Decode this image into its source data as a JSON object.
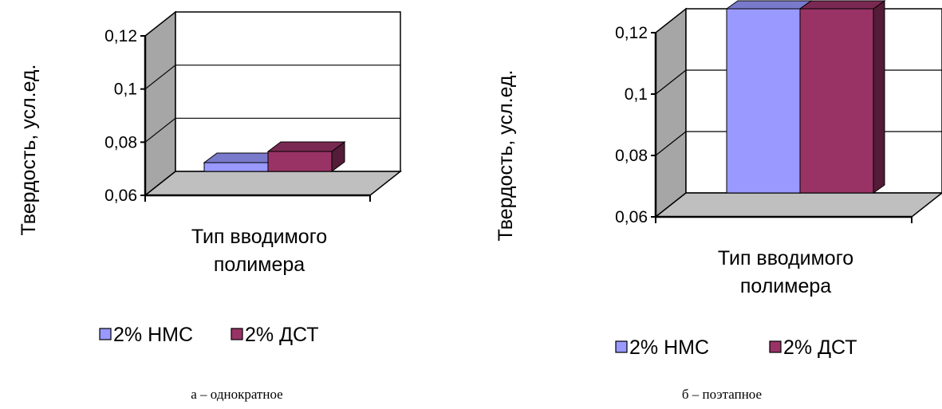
{
  "charts": [
    {
      "caption": "а – однократное",
      "chart_data": {
        "type": "bar",
        "categories": [
          "Тип вводимого полимера"
        ],
        "series": [
          {
            "name": "2% НМС",
            "values": [
              0.0633
            ],
            "color": "#9999ff"
          },
          {
            "name": "2% ДСТ",
            "values": [
              0.0675
            ],
            "color": "#993366"
          }
        ],
        "title": "",
        "xlabel_lines": [
          "Тип вводимого",
          "полимера"
        ],
        "ylabel": "Твердость, усл.ед.",
        "ylim": [
          0.06,
          0.12
        ],
        "yticks": [
          "0,06",
          "0,08",
          "0,1",
          "0,12"
        ],
        "grid": true,
        "legend_position": "bottom",
        "style": "3d-column"
      }
    },
    {
      "caption": "б – поэтапное",
      "chart_data": {
        "type": "bar",
        "categories": [
          "Тип вводимого полимера"
        ],
        "series": [
          {
            "name": "2% НМС",
            "values": [
              0.12
            ],
            "color": "#9999ff"
          },
          {
            "name": "2% ДСТ",
            "values": [
              0.12
            ],
            "color": "#993366"
          }
        ],
        "title": "",
        "xlabel_lines": [
          "Тип вводимого",
          "полимера"
        ],
        "ylabel": "Твердость, усл.ед.",
        "ylim": [
          0.06,
          0.12
        ],
        "yticks": [
          "0,06",
          "0,08",
          "0,1",
          "0,12"
        ],
        "grid": true,
        "legend_position": "bottom",
        "style": "3d-column"
      }
    }
  ]
}
